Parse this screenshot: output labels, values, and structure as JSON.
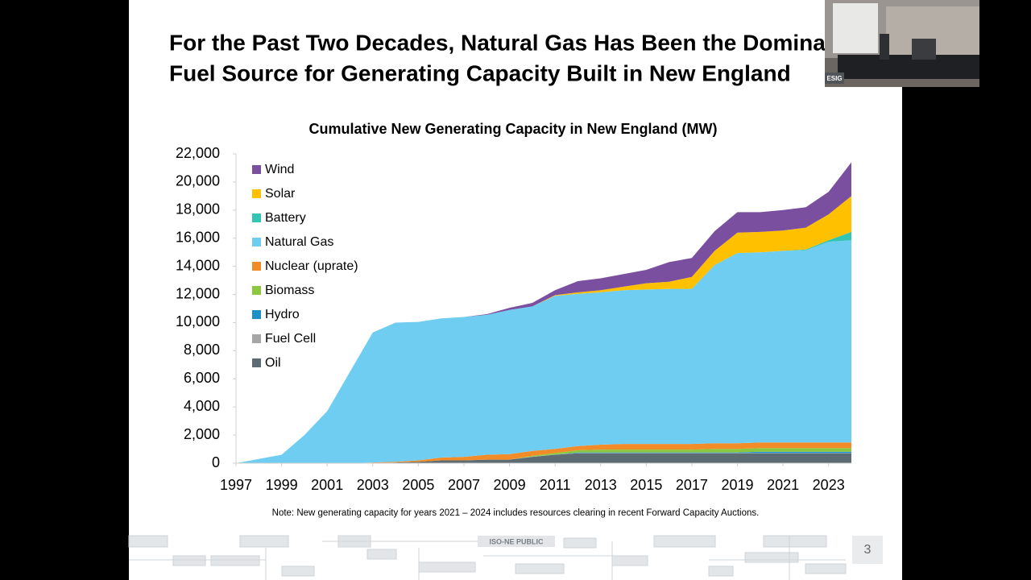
{
  "slide": {
    "title_lines": [
      "For the Past Two Decades, Natural Gas Has Been the Dominant",
      "Fuel Source for Generating Capacity Built in New England"
    ],
    "note": "Note: New generating capacity for years 2021 – 2024 includes resources clearing in recent Forward Capacity Auctions.",
    "footer": "ISO-NE PUBLIC",
    "page_number": "3"
  },
  "video_overlay": {
    "label": "ESIG"
  },
  "chart_data": {
    "type": "stacked_area",
    "title": "Cumulative New Generating Capacity in New England (MW)",
    "x": [
      1997,
      1998,
      1999,
      2000,
      2001,
      2002,
      2003,
      2004,
      2005,
      2006,
      2007,
      2008,
      2009,
      2010,
      2011,
      2012,
      2013,
      2014,
      2015,
      2016,
      2017,
      2018,
      2019,
      2020,
      2021,
      2022,
      2023,
      2024
    ],
    "xlim": [
      1997,
      2024
    ],
    "xticks": [
      1997,
      1999,
      2001,
      2003,
      2005,
      2007,
      2009,
      2011,
      2013,
      2015,
      2017,
      2019,
      2021,
      2023
    ],
    "ylim": [
      0,
      22000
    ],
    "yticks": [
      0,
      {
        "value": 2000,
        "label": "2,000"
      },
      {
        "value": 4000,
        "label": "4,000"
      },
      {
        "value": 6000,
        "label": "6,000"
      },
      {
        "value": 8000,
        "label": "8,000"
      },
      {
        "value": 10000,
        "label": "10,000"
      },
      {
        "value": 12000,
        "label": "12,000"
      },
      {
        "value": 14000,
        "label": "14,000"
      },
      {
        "value": 16000,
        "label": "16,000"
      },
      {
        "value": 18000,
        "label": "18,000"
      },
      {
        "value": 20000,
        "label": "20,000"
      },
      {
        "value": 22000,
        "label": "22,000"
      }
    ],
    "legend": "top-left",
    "series": [
      {
        "name": "Oil",
        "color": "#5d6b73",
        "values": [
          0,
          0,
          0,
          0,
          0,
          0,
          0,
          50,
          100,
          200,
          200,
          250,
          250,
          450,
          600,
          700,
          700,
          700,
          700,
          700,
          700,
          700,
          700,
          700,
          700,
          700,
          700,
          700
        ]
      },
      {
        "name": "Fuel Cell",
        "color": "#a6a6a6",
        "values": [
          0,
          0,
          0,
          0,
          0,
          0,
          0,
          0,
          0,
          0,
          0,
          0,
          0,
          20,
          20,
          20,
          20,
          20,
          20,
          20,
          20,
          20,
          20,
          20,
          20,
          20,
          20,
          20
        ]
      },
      {
        "name": "Hydro",
        "color": "#1f8fc8",
        "values": [
          0,
          0,
          0,
          0,
          0,
          0,
          0,
          0,
          0,
          0,
          0,
          0,
          0,
          0,
          0,
          50,
          50,
          50,
          50,
          50,
          50,
          50,
          50,
          100,
          100,
          100,
          100,
          100
        ]
      },
      {
        "name": "Biomass",
        "color": "#8cc83f",
        "values": [
          0,
          0,
          0,
          0,
          0,
          0,
          0,
          0,
          0,
          0,
          0,
          0,
          0,
          50,
          100,
          150,
          200,
          200,
          200,
          200,
          200,
          250,
          250,
          250,
          250,
          250,
          250,
          250
        ]
      },
      {
        "name": "Nuclear (uprate)",
        "color": "#f28c28",
        "values": [
          0,
          0,
          0,
          0,
          0,
          0,
          50,
          50,
          100,
          200,
          250,
          350,
          400,
          350,
          300,
          300,
          350,
          400,
          400,
          400,
          400,
          400,
          400,
          400,
          400,
          400,
          400,
          400
        ]
      },
      {
        "name": "Natural Gas",
        "color": "#70cdf2",
        "values": [
          0,
          300,
          600,
          2000,
          3700,
          6500,
          9250,
          9900,
          9850,
          9900,
          9950,
          9950,
          10250,
          10280,
          10880,
          10830,
          10830,
          10930,
          10980,
          11030,
          11030,
          12680,
          13530,
          13530,
          13630,
          13680,
          14280,
          14380
        ]
      },
      {
        "name": "Battery",
        "color": "#33c4b3",
        "values": [
          0,
          0,
          0,
          0,
          0,
          0,
          0,
          0,
          0,
          0,
          0,
          0,
          0,
          0,
          0,
          0,
          0,
          0,
          0,
          0,
          0,
          0,
          0,
          0,
          0,
          50,
          100,
          600
        ]
      },
      {
        "name": "Solar",
        "color": "#ffc000",
        "values": [
          0,
          0,
          0,
          0,
          0,
          0,
          0,
          0,
          0,
          0,
          0,
          0,
          0,
          0,
          50,
          100,
          150,
          250,
          450,
          500,
          850,
          1000,
          1450,
          1450,
          1450,
          1550,
          1850,
          2550
        ]
      },
      {
        "name": "Wind",
        "color": "#7b4f9f",
        "values": [
          0,
          0,
          0,
          0,
          0,
          0,
          0,
          0,
          0,
          0,
          0,
          50,
          150,
          250,
          350,
          800,
          850,
          900,
          950,
          1400,
          1350,
          1400,
          1450,
          1400,
          1450,
          1450,
          1600,
          2400
        ]
      }
    ]
  }
}
